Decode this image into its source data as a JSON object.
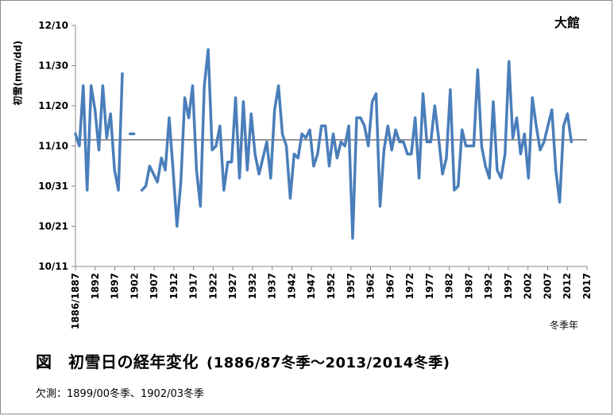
{
  "station": "大館",
  "footer": {
    "title": "図　初雪日の経年変化",
    "subtitle": "(1886/87冬季～2013/2014冬季)",
    "note": "欠測：1899/00冬季、1902/03冬季"
  },
  "chart_data": {
    "type": "line",
    "title": "図　初雪日の経年変化",
    "xlabel": "冬季年",
    "ylabel": "初雪(mm/dd)",
    "x_range": [
      1886,
      2017
    ],
    "x_tick_labels": [
      "1886/1887",
      "1892",
      "1897",
      "1902",
      "1907",
      "1912",
      "1917",
      "1922",
      "1927",
      "1932",
      "1937",
      "1942",
      "1947",
      "1952",
      "1957",
      "1962",
      "1967",
      "1972",
      "1977",
      "1982",
      "1987",
      "1992",
      "1997",
      "2002",
      "2007",
      "2012",
      "2017"
    ],
    "y_axis_unit": "days after Nov 1 (negative = October)",
    "y_range": [
      -20,
      40
    ],
    "y_ticks": [
      -20,
      -10,
      0,
      10,
      20,
      30,
      40
    ],
    "y_tick_labels": [
      "10/11",
      "10/21",
      "10/31",
      "11/10",
      "11/20",
      "11/30",
      "12/10"
    ],
    "reference_line": 11.5,
    "grid": false,
    "legend": "none",
    "color": "#4a7ebb",
    "series": [
      {
        "values": [
          [
            1886,
            13
          ],
          [
            1887,
            10
          ],
          [
            1888,
            25
          ],
          [
            1889,
            -1
          ],
          [
            1890,
            25
          ],
          [
            1891,
            19
          ],
          [
            1892,
            9
          ],
          [
            1893,
            25
          ],
          [
            1894,
            12
          ],
          [
            1895,
            18
          ],
          [
            1896,
            4
          ],
          [
            1897,
            -1
          ],
          [
            1898,
            28
          ],
          [
            1899,
            null
          ],
          [
            1900,
            13
          ],
          [
            1901,
            13
          ],
          [
            1902,
            null
          ],
          [
            1903,
            -1
          ],
          [
            1904,
            0
          ],
          [
            1905,
            5
          ],
          [
            1906,
            3
          ],
          [
            1907,
            1
          ],
          [
            1908,
            7
          ],
          [
            1909,
            4
          ],
          [
            1910,
            17
          ],
          [
            1911,
            4
          ],
          [
            1912,
            -10
          ],
          [
            1913,
            1
          ],
          [
            1914,
            22
          ],
          [
            1915,
            17
          ],
          [
            1916,
            25
          ],
          [
            1917,
            4
          ],
          [
            1918,
            -5
          ],
          [
            1919,
            25
          ],
          [
            1920,
            34
          ],
          [
            1921,
            9
          ],
          [
            1922,
            10
          ],
          [
            1923,
            15
          ],
          [
            1924,
            -1
          ],
          [
            1925,
            6
          ],
          [
            1926,
            6
          ],
          [
            1927,
            22
          ],
          [
            1928,
            2
          ],
          [
            1929,
            21
          ],
          [
            1930,
            4
          ],
          [
            1931,
            18
          ],
          [
            1932,
            8
          ],
          [
            1933,
            3
          ],
          [
            1934,
            7
          ],
          [
            1935,
            11
          ],
          [
            1936,
            2
          ],
          [
            1937,
            19
          ],
          [
            1938,
            25
          ],
          [
            1939,
            13
          ],
          [
            1940,
            10
          ],
          [
            1941,
            -3
          ],
          [
            1942,
            8
          ],
          [
            1943,
            7
          ],
          [
            1944,
            13
          ],
          [
            1945,
            12
          ],
          [
            1946,
            14
          ],
          [
            1947,
            5
          ],
          [
            1948,
            8
          ],
          [
            1949,
            15
          ],
          [
            1950,
            15
          ],
          [
            1951,
            5
          ],
          [
            1952,
            13
          ],
          [
            1953,
            7
          ],
          [
            1954,
            11
          ],
          [
            1955,
            10
          ],
          [
            1956,
            15
          ],
          [
            1957,
            -13
          ],
          [
            1958,
            17
          ],
          [
            1959,
            17
          ],
          [
            1960,
            15
          ],
          [
            1961,
            10
          ],
          [
            1962,
            21
          ],
          [
            1963,
            23
          ],
          [
            1964,
            -5
          ],
          [
            1965,
            9
          ],
          [
            1966,
            15
          ],
          [
            1967,
            9
          ],
          [
            1968,
            14
          ],
          [
            1969,
            11
          ],
          [
            1970,
            11
          ],
          [
            1971,
            8
          ],
          [
            1972,
            8
          ],
          [
            1973,
            17
          ],
          [
            1974,
            2
          ],
          [
            1975,
            23
          ],
          [
            1976,
            11
          ],
          [
            1977,
            11
          ],
          [
            1978,
            20
          ],
          [
            1979,
            12
          ],
          [
            1980,
            3
          ],
          [
            1981,
            7
          ],
          [
            1982,
            24
          ],
          [
            1983,
            -1
          ],
          [
            1984,
            0
          ],
          [
            1985,
            14
          ],
          [
            1986,
            10
          ],
          [
            1987,
            10
          ],
          [
            1988,
            10
          ],
          [
            1989,
            29
          ],
          [
            1990,
            10
          ],
          [
            1991,
            5
          ],
          [
            1992,
            2
          ],
          [
            1993,
            21
          ],
          [
            1994,
            4
          ],
          [
            1995,
            2
          ],
          [
            1996,
            8
          ],
          [
            1997,
            31
          ],
          [
            1998,
            12
          ],
          [
            1999,
            17
          ],
          [
            2000,
            8
          ],
          [
            2001,
            13
          ],
          [
            2002,
            2
          ],
          [
            2003,
            22
          ],
          [
            2004,
            15
          ],
          [
            2005,
            9
          ],
          [
            2006,
            11
          ],
          [
            2007,
            15
          ],
          [
            2008,
            19
          ],
          [
            2009,
            4
          ],
          [
            2010,
            -4
          ],
          [
            2011,
            15
          ],
          [
            2012,
            18
          ],
          [
            2013,
            11
          ]
        ]
      }
    ]
  }
}
